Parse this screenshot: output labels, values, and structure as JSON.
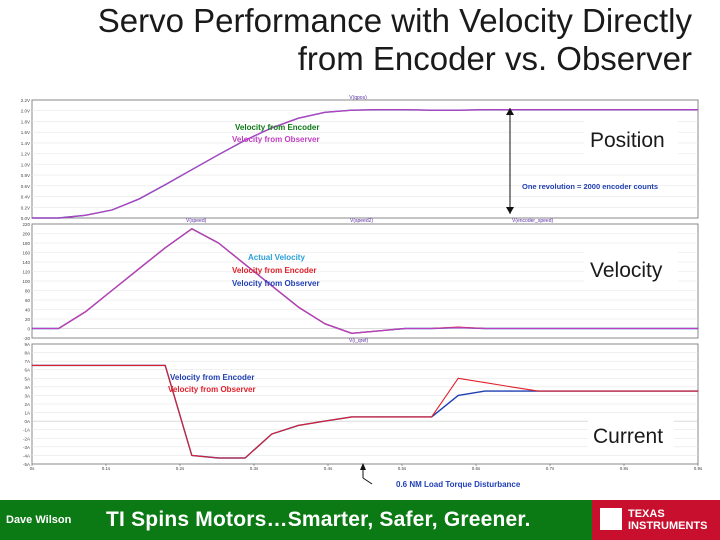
{
  "slide": {
    "title_line1": "Servo Performance with Velocity Directly",
    "title_line2": "from Encoder vs. Observer",
    "footer_author": "Dave Wilson",
    "footer_slogan": "TI Spins Motors…Smarter, Safer, Greener.",
    "logo_line1": "TEXAS",
    "logo_line2": "INSTRUMENTS"
  },
  "colors": {
    "blue": "#1f3fb3",
    "red": "#e0202a",
    "magenta": "#c040c0",
    "footer_green": "#0c7a14",
    "ti_red": "#c8102e"
  },
  "chart_data": [
    {
      "type": "line",
      "label": "Position",
      "title": "V(qpos)",
      "x": [
        0,
        20,
        40,
        60,
        80,
        100,
        120,
        140,
        160,
        180,
        200,
        220,
        240,
        260,
        280,
        300,
        320,
        340,
        360,
        380,
        400,
        420,
        440,
        460,
        480,
        500
      ],
      "series": [
        {
          "name": "Velocity from Encoder",
          "color": "#1f3fb3",
          "values": [
            0,
            0.0,
            0.05,
            0.15,
            0.35,
            0.62,
            0.9,
            1.18,
            1.45,
            1.68,
            1.86,
            1.97,
            2.01,
            2.02,
            2.02,
            2.01,
            2.01,
            2.02,
            2.02,
            2.02,
            2.02,
            2.02,
            2.02,
            2.02,
            2.02,
            2.02
          ]
        },
        {
          "name": "Velocity from Observer",
          "color": "#c040c0",
          "values": [
            0,
            0.0,
            0.05,
            0.15,
            0.35,
            0.62,
            0.9,
            1.18,
            1.45,
            1.68,
            1.86,
            1.97,
            2.01,
            2.02,
            2.02,
            2.01,
            2.01,
            2.02,
            2.02,
            2.02,
            2.02,
            2.02,
            2.02,
            2.02,
            2.02,
            2.02
          ]
        }
      ],
      "ylim": [
        0,
        2.2
      ],
      "yticks": [
        "0.0V",
        "0.2V",
        "0.4V",
        "0.6V",
        "0.8V",
        "1.0V",
        "1.2V",
        "1.4V",
        "1.6V",
        "1.8V",
        "2.0V",
        "2.2V"
      ],
      "annotation": "One revolution = 2000 encoder counts",
      "bottom_labels": [
        "V(speed)",
        "V(speed2)",
        "V(encoder_speed)"
      ]
    },
    {
      "type": "line",
      "label": "Velocity",
      "x": [
        0,
        20,
        40,
        60,
        80,
        100,
        120,
        140,
        160,
        180,
        200,
        220,
        240,
        260,
        280,
        300,
        320,
        340,
        360,
        380,
        400,
        420,
        440,
        460,
        480,
        500
      ],
      "series": [
        {
          "name": "Actual Velocity",
          "color": "#1f3fb3",
          "values": [
            0,
            0,
            35,
            80,
            125,
            170,
            210,
            180,
            135,
            90,
            45,
            10,
            -10,
            -5,
            0,
            0,
            2,
            0,
            0,
            0,
            0,
            0,
            0,
            0,
            0,
            0
          ]
        },
        {
          "name": "Velocity from Encoder",
          "color": "#e0202a",
          "values": [
            0,
            0,
            35,
            80,
            125,
            170,
            210,
            180,
            135,
            90,
            45,
            10,
            -10,
            -5,
            0,
            0,
            3,
            0,
            0,
            0,
            0,
            0,
            0,
            0,
            0,
            0
          ]
        },
        {
          "name": "Velocity from Observer",
          "color": "#c040c0",
          "values": [
            0,
            0,
            35,
            80,
            125,
            170,
            210,
            180,
            135,
            90,
            45,
            10,
            -10,
            -5,
            0,
            0,
            2,
            0,
            0,
            0,
            0,
            0,
            0,
            0,
            0,
            0
          ]
        }
      ],
      "ylim": [
        -20,
        220
      ],
      "yticks": [
        "-20",
        "0",
        "20",
        "40",
        "60",
        "80",
        "100",
        "120",
        "140",
        "160",
        "180",
        "200",
        "220"
      ],
      "bottom_label": "V(i_qref)"
    },
    {
      "type": "line",
      "label": "Current",
      "x": [
        0,
        20,
        40,
        60,
        80,
        100,
        120,
        140,
        160,
        180,
        200,
        220,
        240,
        260,
        280,
        300,
        320,
        340,
        360,
        380,
        400,
        420,
        440,
        460,
        480,
        500
      ],
      "series": [
        {
          "name": "Velocity from Encoder",
          "color": "#1f3fb3",
          "values": [
            6.5,
            6.5,
            6.5,
            6.5,
            6.5,
            6.5,
            -4.0,
            -4.3,
            -4.3,
            -1.5,
            -0.5,
            0.0,
            0.5,
            0.5,
            0.5,
            0.5,
            3.0,
            3.5,
            3.5,
            3.5,
            3.5,
            3.5,
            3.5,
            3.5,
            3.5,
            3.5
          ]
        },
        {
          "name": "Velocity from Observer",
          "color": "#e0202a",
          "values": [
            6.5,
            6.5,
            6.5,
            6.5,
            6.5,
            6.5,
            -4.0,
            -4.3,
            -4.3,
            -1.5,
            -0.5,
            0.0,
            0.5,
            0.5,
            0.5,
            0.5,
            5.0,
            4.5,
            4.0,
            3.5,
            3.5,
            3.5,
            3.5,
            3.5,
            3.5,
            3.5
          ]
        }
      ],
      "ylim": [
        -5,
        9
      ],
      "yticks": [
        "-5A",
        "-4A",
        "-3A",
        "-2A",
        "-1A",
        "0A",
        "1A",
        "2A",
        "3A",
        "4A",
        "5A",
        "6A",
        "7A",
        "8A",
        "9A"
      ],
      "xticks": [
        "0s",
        "0.1s",
        "0.2s",
        "0.3s",
        "0.4s",
        "0.5s",
        "0.6s",
        "0.7s",
        "0.8s",
        "0.9s"
      ],
      "annotation": "0.6 NM Load Torque Disturbance"
    }
  ]
}
